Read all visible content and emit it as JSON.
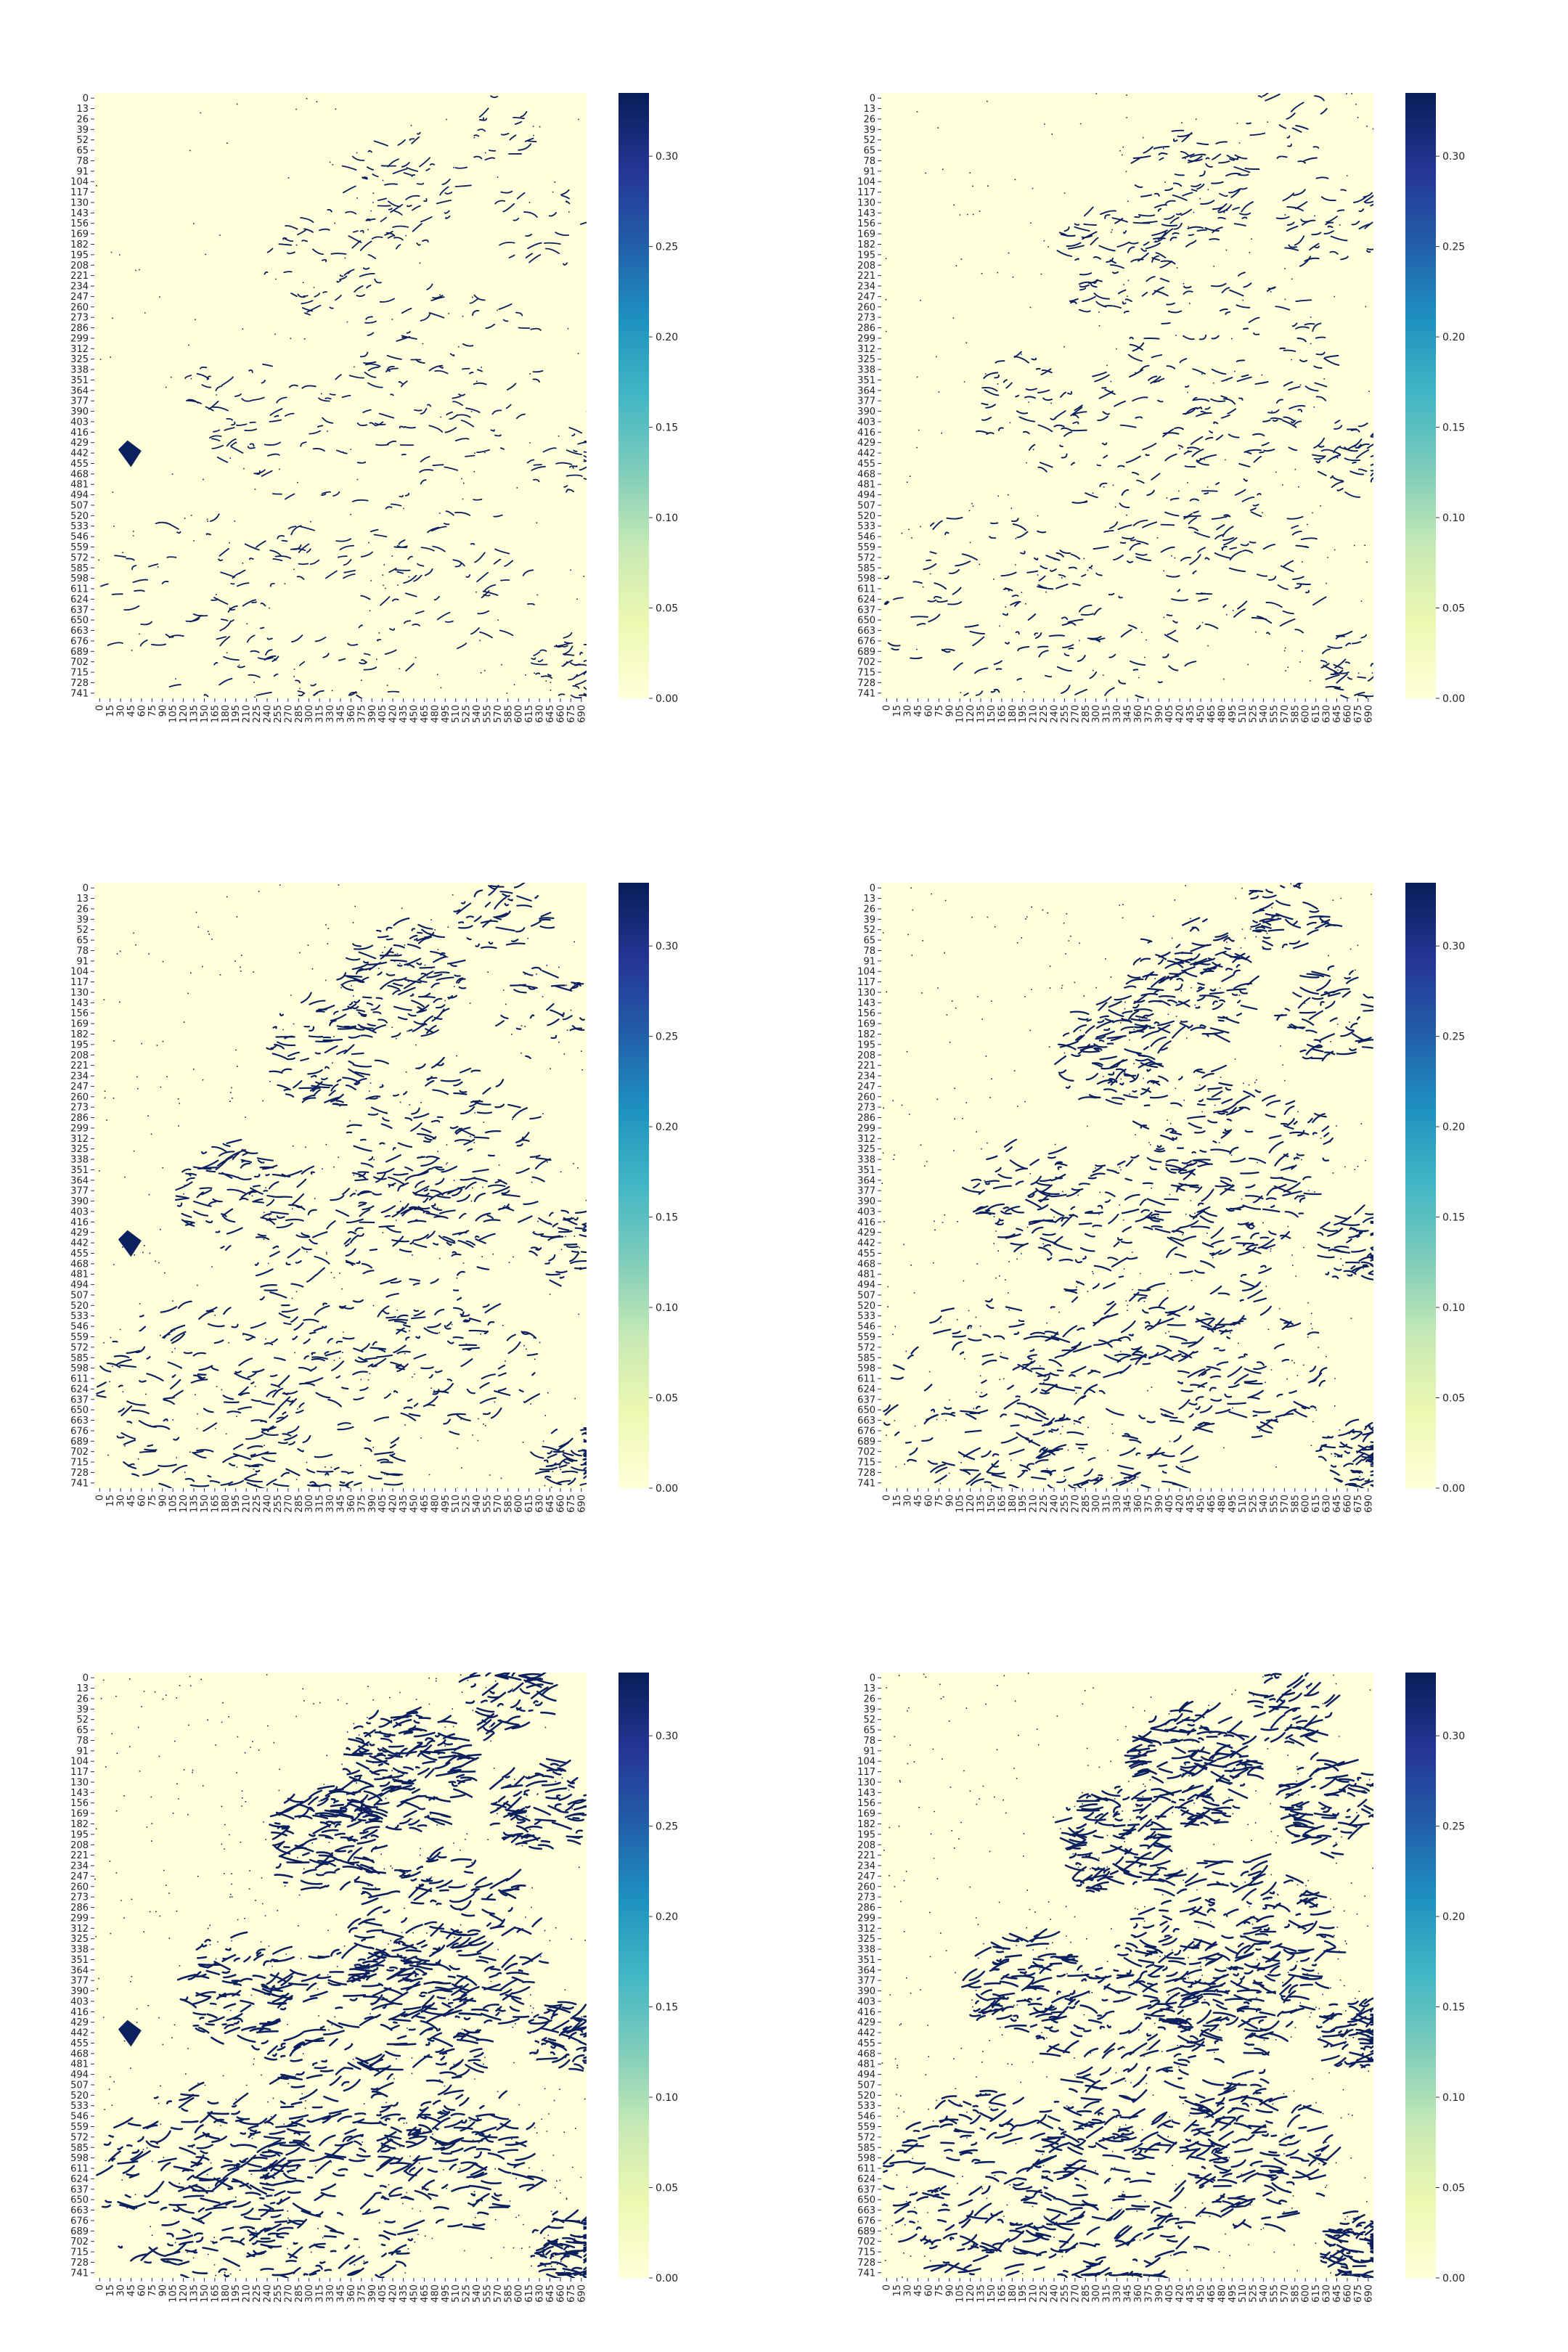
{
  "figure": {
    "colormap": "YlGnBu",
    "colormap_stops": [
      "#ffffd9",
      "#edf8b1",
      "#c7e9b4",
      "#7fcdbb",
      "#41b6c4",
      "#1d91c0",
      "#225ea8",
      "#253494",
      "#081d58"
    ],
    "background_color": "#ffffd9",
    "feature_color": "#0c2060"
  },
  "chart_data": [
    {
      "type": "heatmap",
      "panel": "row1-left",
      "density": 0.35,
      "seed": 11,
      "has_diamond": true,
      "x_ticks": [
        "0",
        "15",
        "30",
        "45",
        "60",
        "75",
        "90",
        "105",
        "120",
        "135",
        "150",
        "165",
        "180",
        "195",
        "210",
        "225",
        "240",
        "255",
        "270",
        "285",
        "300",
        "315",
        "330",
        "345",
        "360",
        "375",
        "390",
        "405",
        "420",
        "435",
        "450",
        "465",
        "480",
        "495",
        "510",
        "525",
        "540",
        "555",
        "570",
        "585",
        "600",
        "615",
        "630",
        "645",
        "660",
        "675",
        "690"
      ],
      "y_ticks": [
        "0",
        "13",
        "26",
        "39",
        "52",
        "65",
        "78",
        "91",
        "104",
        "117",
        "130",
        "143",
        "156",
        "169",
        "182",
        "195",
        "208",
        "221",
        "234",
        "247",
        "260",
        "273",
        "286",
        "299",
        "312",
        "325",
        "338",
        "351",
        "364",
        "377",
        "390",
        "403",
        "416",
        "429",
        "442",
        "455",
        "468",
        "481",
        "494",
        "507",
        "520",
        "533",
        "546",
        "559",
        "572",
        "585",
        "598",
        "611",
        "624",
        "637",
        "650",
        "663",
        "676",
        "689",
        "702",
        "715",
        "728",
        "741"
      ],
      "colorbar": {
        "vmin": 0.0,
        "vmax": 0.335,
        "ticks": [
          "0.00",
          "0.05",
          "0.10",
          "0.15",
          "0.20",
          "0.25",
          "0.30"
        ]
      }
    },
    {
      "type": "heatmap",
      "panel": "row1-right",
      "density": 0.45,
      "seed": 23,
      "has_diamond": false,
      "x_ticks": [
        "0",
        "15",
        "30",
        "45",
        "60",
        "75",
        "90",
        "105",
        "120",
        "135",
        "150",
        "165",
        "180",
        "195",
        "210",
        "225",
        "240",
        "255",
        "270",
        "285",
        "300",
        "315",
        "330",
        "345",
        "360",
        "375",
        "390",
        "405",
        "420",
        "435",
        "450",
        "465",
        "480",
        "495",
        "510",
        "525",
        "540",
        "555",
        "570",
        "585",
        "600",
        "615",
        "630",
        "645",
        "660",
        "675",
        "690"
      ],
      "y_ticks": [
        "0",
        "13",
        "26",
        "39",
        "52",
        "65",
        "78",
        "91",
        "104",
        "117",
        "130",
        "143",
        "156",
        "169",
        "182",
        "195",
        "208",
        "221",
        "234",
        "247",
        "260",
        "273",
        "286",
        "299",
        "312",
        "325",
        "338",
        "351",
        "364",
        "377",
        "390",
        "403",
        "416",
        "429",
        "442",
        "455",
        "468",
        "481",
        "494",
        "507",
        "520",
        "533",
        "546",
        "559",
        "572",
        "585",
        "598",
        "611",
        "624",
        "637",
        "650",
        "663",
        "676",
        "689",
        "702",
        "715",
        "728",
        "741"
      ],
      "colorbar": {
        "vmin": 0.0,
        "vmax": 0.335,
        "ticks": [
          "0.00",
          "0.05",
          "0.10",
          "0.15",
          "0.20",
          "0.25",
          "0.30"
        ]
      }
    },
    {
      "type": "heatmap",
      "panel": "row2-left",
      "density": 0.65,
      "seed": 37,
      "has_diamond": true,
      "x_ticks": [
        "0",
        "15",
        "30",
        "45",
        "60",
        "75",
        "90",
        "105",
        "120",
        "135",
        "150",
        "165",
        "180",
        "195",
        "210",
        "225",
        "240",
        "255",
        "270",
        "285",
        "300",
        "315",
        "330",
        "345",
        "360",
        "375",
        "390",
        "405",
        "420",
        "435",
        "450",
        "465",
        "480",
        "495",
        "510",
        "525",
        "540",
        "555",
        "570",
        "585",
        "600",
        "615",
        "630",
        "645",
        "660",
        "675",
        "690"
      ],
      "y_ticks": [
        "0",
        "13",
        "26",
        "39",
        "52",
        "65",
        "78",
        "91",
        "104",
        "117",
        "130",
        "143",
        "156",
        "169",
        "182",
        "195",
        "208",
        "221",
        "234",
        "247",
        "260",
        "273",
        "286",
        "299",
        "312",
        "325",
        "338",
        "351",
        "364",
        "377",
        "390",
        "403",
        "416",
        "429",
        "442",
        "455",
        "468",
        "481",
        "494",
        "507",
        "520",
        "533",
        "546",
        "559",
        "572",
        "585",
        "598",
        "611",
        "624",
        "637",
        "650",
        "663",
        "676",
        "689",
        "702",
        "715",
        "728",
        "741"
      ],
      "colorbar": {
        "vmin": 0.0,
        "vmax": 0.335,
        "ticks": [
          "0.00",
          "0.05",
          "0.10",
          "0.15",
          "0.20",
          "0.25",
          "0.30"
        ]
      }
    },
    {
      "type": "heatmap",
      "panel": "row2-right",
      "density": 0.72,
      "seed": 41,
      "has_diamond": false,
      "x_ticks": [
        "0",
        "15",
        "30",
        "45",
        "60",
        "75",
        "90",
        "105",
        "120",
        "135",
        "150",
        "165",
        "180",
        "195",
        "210",
        "225",
        "240",
        "255",
        "270",
        "285",
        "300",
        "315",
        "330",
        "345",
        "360",
        "375",
        "390",
        "405",
        "420",
        "435",
        "450",
        "465",
        "480",
        "495",
        "510",
        "525",
        "540",
        "555",
        "570",
        "585",
        "600",
        "615",
        "630",
        "645",
        "660",
        "675",
        "690"
      ],
      "y_ticks": [
        "0",
        "13",
        "26",
        "39",
        "52",
        "65",
        "78",
        "91",
        "104",
        "117",
        "130",
        "143",
        "156",
        "169",
        "182",
        "195",
        "208",
        "221",
        "234",
        "247",
        "260",
        "273",
        "286",
        "299",
        "312",
        "325",
        "338",
        "351",
        "364",
        "377",
        "390",
        "403",
        "416",
        "429",
        "442",
        "455",
        "468",
        "481",
        "494",
        "507",
        "520",
        "533",
        "546",
        "559",
        "572",
        "585",
        "598",
        "611",
        "624",
        "637",
        "650",
        "663",
        "676",
        "689",
        "702",
        "715",
        "728",
        "741"
      ],
      "colorbar": {
        "vmin": 0.0,
        "vmax": 0.335,
        "ticks": [
          "0.00",
          "0.05",
          "0.10",
          "0.15",
          "0.20",
          "0.25",
          "0.30"
        ]
      }
    },
    {
      "type": "heatmap",
      "panel": "row3-left",
      "density": 1.0,
      "seed": 53,
      "has_diamond": true,
      "x_ticks": [
        "0",
        "15",
        "30",
        "45",
        "60",
        "75",
        "90",
        "105",
        "120",
        "135",
        "150",
        "165",
        "180",
        "195",
        "210",
        "225",
        "240",
        "255",
        "270",
        "285",
        "300",
        "315",
        "330",
        "345",
        "360",
        "375",
        "390",
        "405",
        "420",
        "435",
        "450",
        "465",
        "480",
        "495",
        "510",
        "525",
        "540",
        "555",
        "570",
        "585",
        "600",
        "615",
        "630",
        "645",
        "660",
        "675",
        "690"
      ],
      "y_ticks": [
        "0",
        "13",
        "26",
        "39",
        "52",
        "65",
        "78",
        "91",
        "104",
        "117",
        "130",
        "143",
        "156",
        "169",
        "182",
        "195",
        "208",
        "221",
        "234",
        "247",
        "260",
        "273",
        "286",
        "299",
        "312",
        "325",
        "338",
        "351",
        "364",
        "377",
        "390",
        "403",
        "416",
        "429",
        "442",
        "455",
        "468",
        "481",
        "494",
        "507",
        "520",
        "533",
        "546",
        "559",
        "572",
        "585",
        "598",
        "611",
        "624",
        "637",
        "650",
        "663",
        "676",
        "689",
        "702",
        "715",
        "728",
        "741"
      ],
      "colorbar": {
        "vmin": 0.0,
        "vmax": 0.335,
        "ticks": [
          "0.00",
          "0.05",
          "0.10",
          "0.15",
          "0.20",
          "0.25",
          "0.30"
        ]
      }
    },
    {
      "type": "heatmap",
      "panel": "row3-right",
      "density": 1.0,
      "seed": 67,
      "has_diamond": false,
      "x_ticks": [
        "0",
        "15",
        "30",
        "45",
        "60",
        "75",
        "90",
        "105",
        "120",
        "135",
        "150",
        "165",
        "180",
        "195",
        "210",
        "225",
        "240",
        "255",
        "270",
        "285",
        "300",
        "315",
        "330",
        "345",
        "360",
        "375",
        "390",
        "405",
        "420",
        "435",
        "450",
        "465",
        "480",
        "495",
        "510",
        "525",
        "540",
        "555",
        "570",
        "585",
        "600",
        "615",
        "630",
        "645",
        "660",
        "675",
        "690"
      ],
      "y_ticks": [
        "0",
        "13",
        "26",
        "39",
        "52",
        "65",
        "78",
        "91",
        "104",
        "117",
        "130",
        "143",
        "156",
        "169",
        "182",
        "195",
        "208",
        "221",
        "234",
        "247",
        "260",
        "273",
        "286",
        "299",
        "312",
        "325",
        "338",
        "351",
        "364",
        "377",
        "390",
        "403",
        "416",
        "429",
        "442",
        "455",
        "468",
        "481",
        "494",
        "507",
        "520",
        "533",
        "546",
        "559",
        "572",
        "585",
        "598",
        "611",
        "624",
        "637",
        "650",
        "663",
        "676",
        "689",
        "702",
        "715",
        "728",
        "741"
      ],
      "colorbar": {
        "vmin": 0.0,
        "vmax": 0.335,
        "ticks": [
          "0.00",
          "0.05",
          "0.10",
          "0.15",
          "0.20",
          "0.25",
          "0.30"
        ]
      }
    }
  ]
}
